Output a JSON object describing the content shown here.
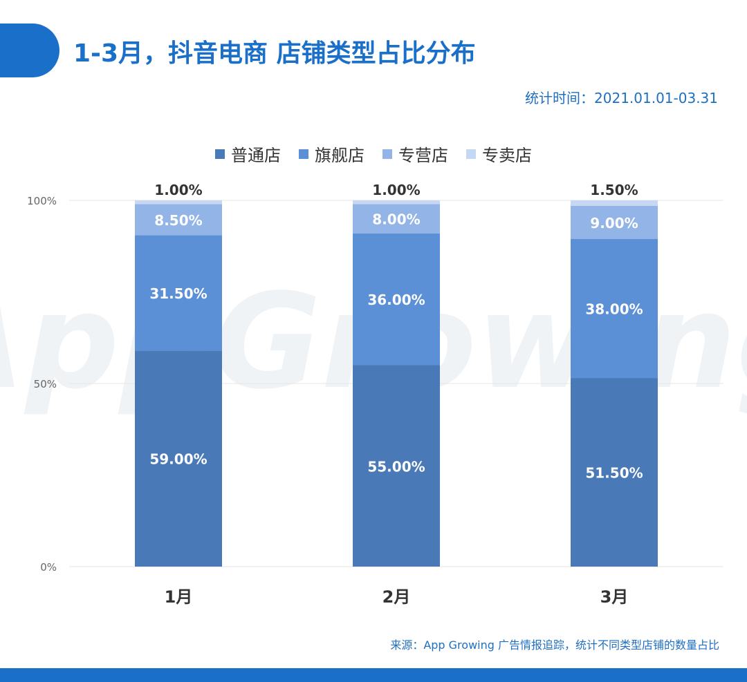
{
  "header": {
    "title": "1-3月，抖音电商 店铺类型占比分布",
    "stat_time": "统计时间：2021.01.01-03.31"
  },
  "footer": {
    "source": "来源：App Growing 广告情报追踪，统计不同类型店铺的数量占比"
  },
  "watermark": {
    "text": "AppGrowing"
  },
  "chart_data": {
    "type": "bar",
    "stacked": true,
    "categories": [
      "1月",
      "2月",
      "3月"
    ],
    "series": [
      {
        "name": "普通店",
        "values": [
          59.0,
          55.0,
          51.5
        ],
        "labels": [
          "59.00%",
          "55.00%",
          "51.50%"
        ],
        "color": "#4a79b8"
      },
      {
        "name": "旗舰店",
        "values": [
          31.5,
          36.0,
          38.0
        ],
        "labels": [
          "31.50%",
          "36.00%",
          "38.00%"
        ],
        "color": "#5b8fd6"
      },
      {
        "name": "专营店",
        "values": [
          8.5,
          8.0,
          9.0
        ],
        "labels": [
          "8.50%",
          "8.00%",
          "9.00%"
        ],
        "color": "#92b4e6"
      },
      {
        "name": "专卖店",
        "values": [
          1.0,
          1.0,
          1.5
        ],
        "labels": [
          "1.00%",
          "1.00%",
          "1.50%"
        ],
        "color": "#c5d7f2"
      }
    ],
    "y_ticks": [
      "0%",
      "50%",
      "100%"
    ],
    "ylim": [
      0,
      100
    ],
    "grid": true,
    "legend_position": "top-center",
    "colors": {
      "accent": "#1a6fc9",
      "grid": "#e6e6e6",
      "axis_text": "#666666",
      "label_dark": "#333333",
      "label_light": "#ffffff"
    }
  }
}
